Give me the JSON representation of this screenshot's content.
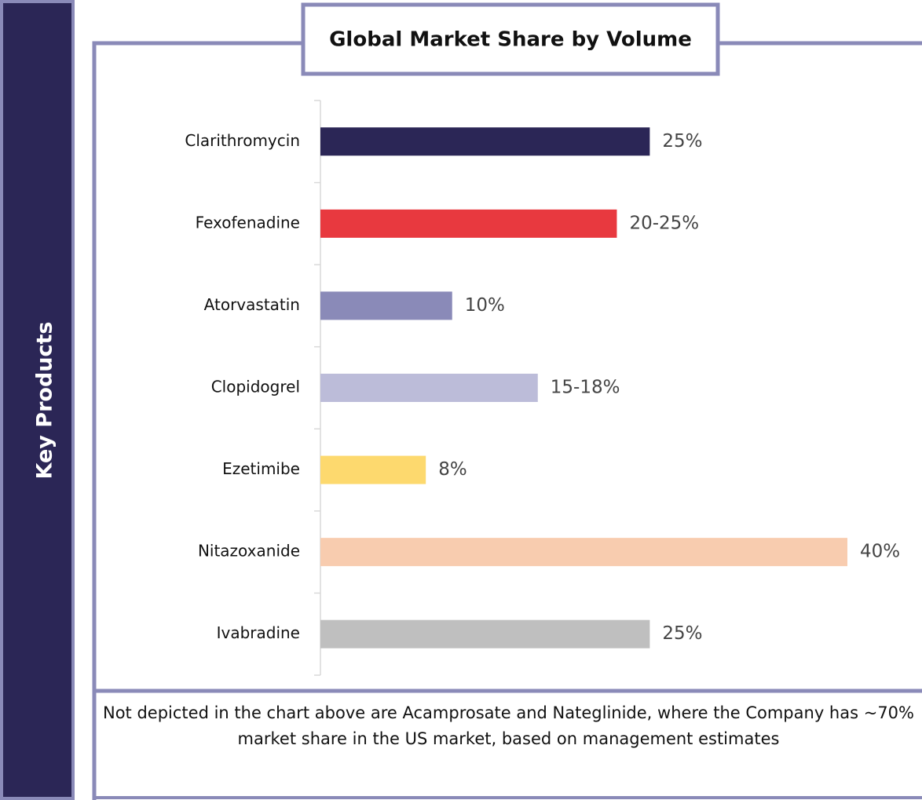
{
  "side_label": "Key Products",
  "chart_data": {
    "type": "bar",
    "orientation": "horizontal",
    "title": "Global Market Share by Volume",
    "categories": [
      "Clarithromycin",
      "Fexofenadine",
      "Atorvastatin",
      "Clopidogrel",
      "Ezetimibe",
      "Nitazoxanide",
      "Ivabradine"
    ],
    "values": [
      25,
      22.5,
      10,
      16.5,
      8,
      40,
      25
    ],
    "value_labels": [
      "25%",
      "20-25%",
      "10%",
      "15-18%",
      "8%",
      "40%",
      "25%"
    ],
    "colors": [
      "#2b2656",
      "#e8393f",
      "#8a8ab8",
      "#bcbcd9",
      "#fdd96e",
      "#f8ccaf",
      "#bfbfbf"
    ],
    "xlim": [
      0,
      40
    ]
  },
  "footnote": "Not depicted in the chart above are Acamprosate and Nateglinide, where the Company has ~70% market share in the US market, based on management estimates"
}
